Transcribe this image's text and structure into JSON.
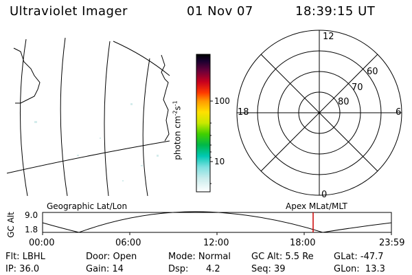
{
  "header": {
    "instrument": "Ultraviolet Imager",
    "date": "01 Nov 07",
    "time": "18:39:15 UT"
  },
  "colorbar": {
    "label": "photon cm",
    "label_exp1": "-2",
    "label_mid": "s",
    "label_exp2": "-1",
    "ticks": [
      "100",
      "10"
    ]
  },
  "polar_plot": {
    "mlt_labels": {
      "top": "12",
      "left": "18",
      "right": "6",
      "bottom": "0"
    },
    "lat_labels": [
      "60",
      "70",
      "80"
    ]
  },
  "altitude_strip": {
    "left_label": "Geographic Lat/Lon",
    "right_label": "Apex MLat/MLT",
    "axis_title": "GC Alt",
    "y_max": "9.0",
    "y_min": "1.8",
    "x_ticks": [
      "00:00",
      "06:00",
      "12:00",
      "18:00",
      "23:59"
    ],
    "current_time_marker_color": "#cc0000"
  },
  "footer": {
    "row1": {
      "flt": "Flt: LBHL",
      "door": "Door: Open",
      "mode": "Mode: Normal",
      "gc_alt": "GC Alt: 5.5 Re",
      "glat": "GLat: -47.7"
    },
    "row2": {
      "ip": "IP: 36.0",
      "gain": "Gain: 14",
      "dsp_label": "Dsp:",
      "dsp_value": "4.2",
      "seq": "Seq: 39",
      "glon": "GLon:  13.3"
    }
  }
}
